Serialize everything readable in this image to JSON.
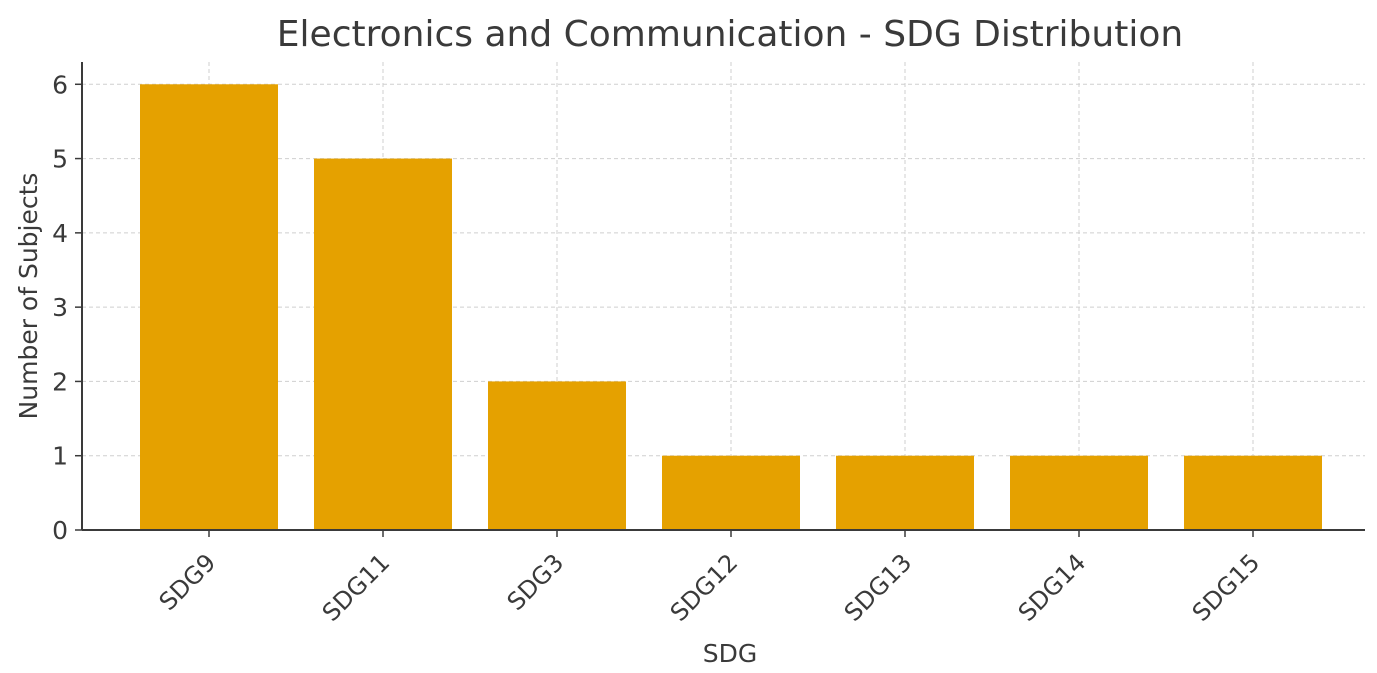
{
  "chart_data": {
    "type": "bar",
    "title": "Electronics and Communication - SDG Distribution",
    "xlabel": "SDG",
    "ylabel": "Number of Subjects",
    "categories": [
      "SDG9",
      "SDG11",
      "SDG3",
      "SDG12",
      "SDG13",
      "SDG14",
      "SDG15"
    ],
    "values": [
      6,
      5,
      2,
      1,
      1,
      1,
      1
    ],
    "ylim": [
      0,
      6.3
    ],
    "yticks": [
      0,
      1,
      2,
      3,
      4,
      5,
      6
    ],
    "grid": true,
    "bar_color": "#e5a100",
    "axis_color": "#3a3a3a",
    "grid_color": "#cfcfcf"
  }
}
